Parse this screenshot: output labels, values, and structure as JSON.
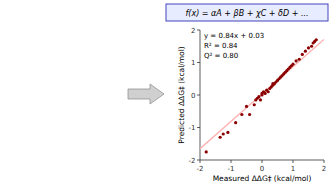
{
  "chart_data": {
    "type": "scatter",
    "title": "f(x) = αA + βB + χC + δD + ...",
    "xlabel": "Measured ΔΔG‡ (kcal/mol)",
    "ylabel": "Predicted ΔΔG‡ (kcal/mol)",
    "annotations": [
      "y = 0.84x + 0.03",
      "R² = 0.84",
      "Q² = 0.80"
    ],
    "xlim": [
      -2,
      2
    ],
    "ylim": [
      -2,
      2
    ],
    "xticks": [
      -2,
      -1,
      0,
      1,
      2
    ],
    "yticks": [
      -2,
      -1,
      0,
      1,
      2
    ],
    "grid": false,
    "series": [
      {
        "type": "scatter",
        "color": "#8B0000",
        "x": [
          -1.8,
          -1.35,
          -1.25,
          -1.1,
          -0.85,
          -0.65,
          -0.5,
          -0.4,
          -0.25,
          -0.2,
          -0.15,
          -0.1,
          -0.05,
          0.0,
          0.0,
          0.05,
          0.1,
          0.15,
          0.2,
          0.25,
          0.3,
          0.35,
          0.35,
          0.4,
          0.45,
          0.5,
          0.55,
          0.6,
          0.65,
          0.7,
          0.75,
          0.8,
          0.85,
          0.9,
          0.95,
          1.0,
          1.1,
          1.2,
          1.3,
          1.4,
          1.5,
          1.6,
          1.65,
          1.7,
          1.75
        ],
        "values": [
          -1.75,
          -1.3,
          -1.2,
          -1.15,
          -0.85,
          -0.6,
          -0.35,
          -0.6,
          -0.3,
          -0.15,
          -0.1,
          -0.05,
          -0.15,
          0.0,
          0.05,
          0.1,
          0.05,
          0.15,
          0.1,
          0.2,
          0.25,
          0.3,
          0.35,
          0.35,
          0.4,
          0.45,
          0.5,
          0.55,
          0.6,
          0.65,
          0.7,
          0.75,
          0.8,
          0.85,
          0.9,
          0.95,
          1.05,
          1.1,
          1.25,
          1.35,
          1.45,
          1.5,
          1.6,
          1.65,
          1.7
        ]
      },
      {
        "type": "line",
        "color": "#ffb0b0",
        "x": [
          -2.0,
          2.0
        ],
        "values": [
          -1.65,
          1.71
        ]
      }
    ]
  }
}
